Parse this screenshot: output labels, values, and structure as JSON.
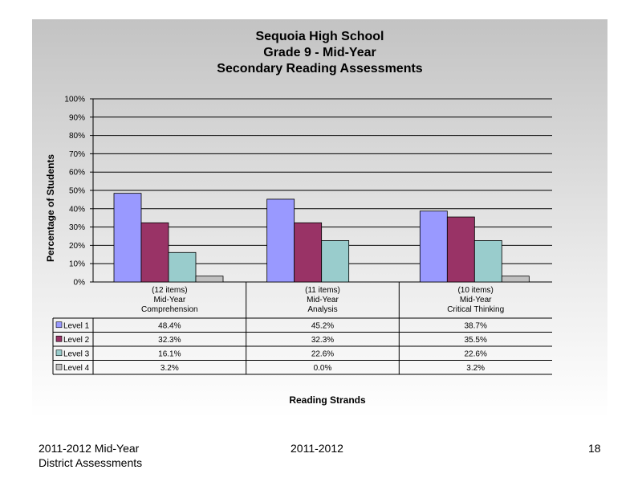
{
  "chart_data": {
    "type": "bar",
    "title_lines": [
      "Sequoia High School",
      "Grade 9 - Mid-Year",
      "Secondary Reading Assessments"
    ],
    "xlabel": "Reading Strands",
    "ylabel": "Percentage of Students",
    "ylim": [
      0,
      100
    ],
    "ytick_labels": [
      "0%",
      "10%",
      "20%",
      "30%",
      "40%",
      "50%",
      "60%",
      "70%",
      "80%",
      "90%",
      "100%"
    ],
    "grid": true,
    "categories": [
      [
        "(12 items)",
        "Mid-Year",
        "Comprehension"
      ],
      [
        "(11 items)",
        "Mid-Year",
        "Analysis"
      ],
      [
        "(10 items)",
        "Mid-Year",
        "Critical Thinking"
      ]
    ],
    "series": [
      {
        "name": "Level 1",
        "color": "#9999ff",
        "values": [
          48.4,
          45.2,
          38.7
        ],
        "labels": [
          "48.4%",
          "45.2%",
          "38.7%"
        ]
      },
      {
        "name": "Level 2",
        "color": "#993366",
        "values": [
          32.3,
          32.3,
          35.5
        ],
        "labels": [
          "32.3%",
          "32.3%",
          "35.5%"
        ]
      },
      {
        "name": "Level 3",
        "color": "#99cccc",
        "values": [
          16.1,
          22.6,
          22.6
        ],
        "labels": [
          "16.1%",
          "22.6%",
          "22.6%"
        ]
      },
      {
        "name": "Level 4",
        "color": "#c0c0c0",
        "values": [
          3.2,
          0.0,
          3.2
        ],
        "labels": [
          "3.2%",
          "0.0%",
          "3.2%"
        ]
      }
    ],
    "legend": "data-table"
  },
  "footer": {
    "left_line1": "2011-2012  Mid-Year",
    "left_line2": "District Assessments",
    "center": "2011-2012",
    "page_number": "18"
  }
}
